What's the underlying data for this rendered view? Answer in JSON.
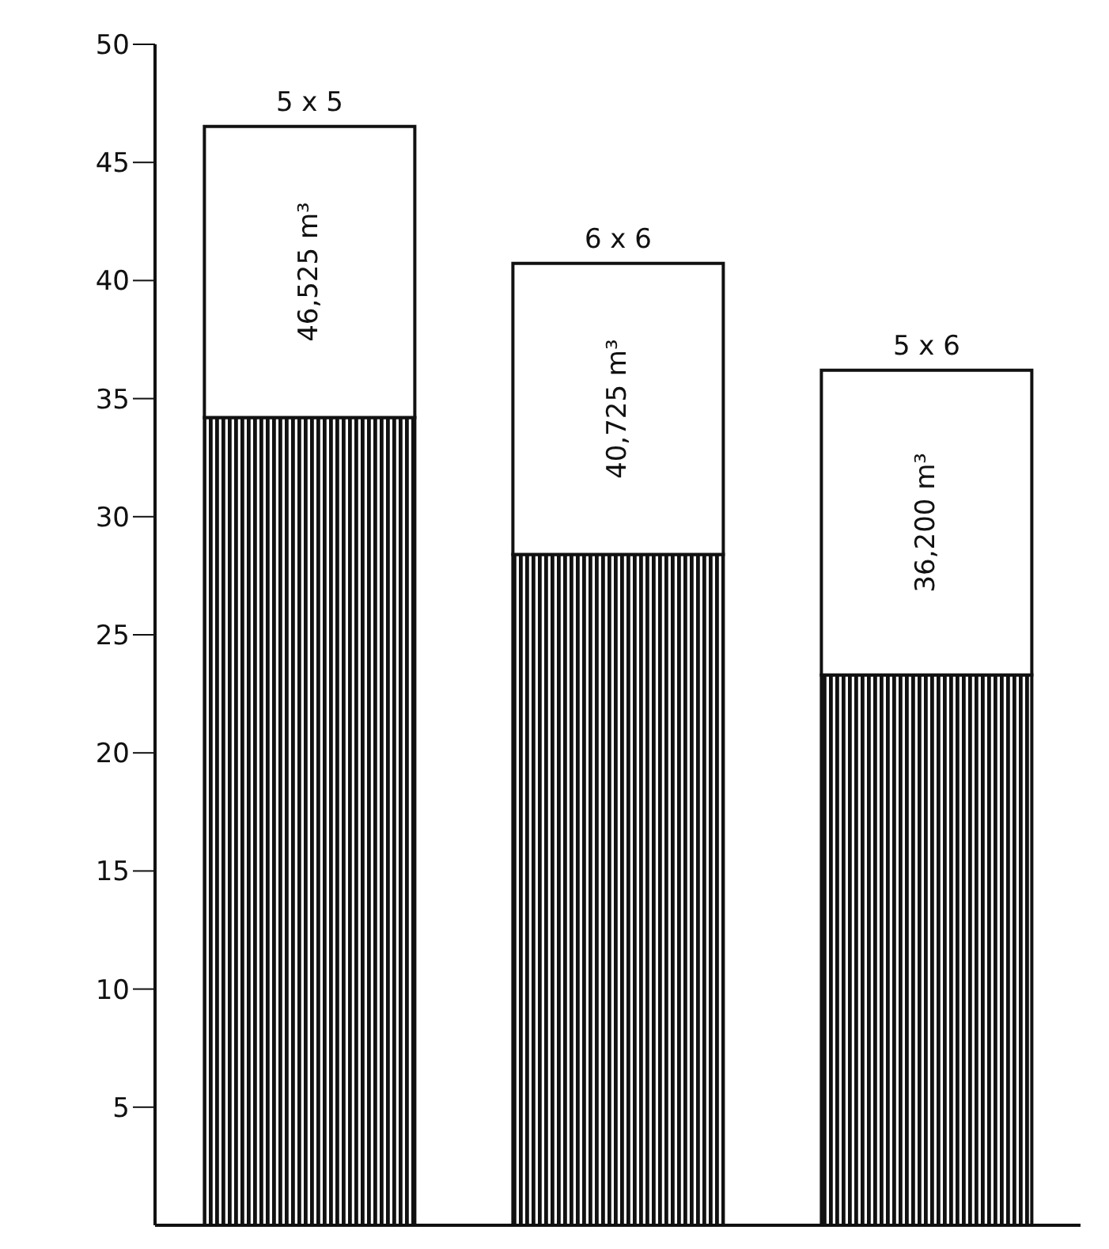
{
  "chart_data": {
    "type": "bar",
    "stacked": true,
    "categories": [
      "5 x 5",
      "6 x 6",
      "5 x 6"
    ],
    "series": [
      {
        "color": "#111111",
        "values": [
          34.2,
          28.4,
          23.3
        ]
      },
      {
        "color": "#ffffff",
        "values": [
          12.325,
          12.325,
          12.9
        ]
      }
    ],
    "totals": [
      "46,525 m³",
      "40,725 m³",
      "36,200 m³"
    ],
    "ylim": [
      0,
      50
    ],
    "yticks": [
      5,
      10,
      15,
      20,
      25,
      30,
      35,
      40,
      45,
      50
    ],
    "tick_labels": "y",
    "grid": false
  }
}
